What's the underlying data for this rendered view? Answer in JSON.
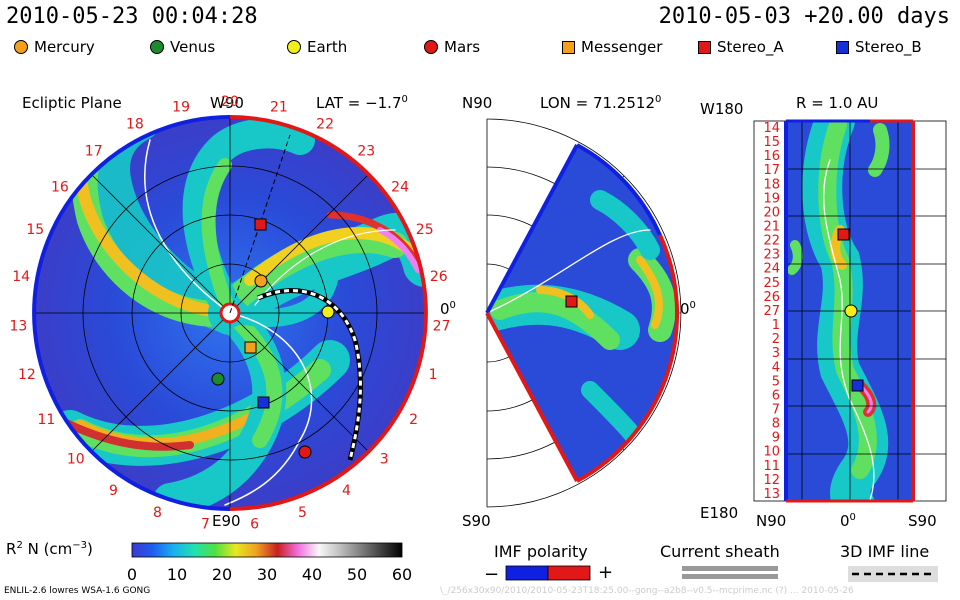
{
  "header": {
    "left_datetime": "2010-05-23 00:04:28",
    "right_datetime": "2010-05-03 +20.00 days"
  },
  "legend": [
    {
      "label": "Mercury",
      "shape": "circle",
      "color": "#f5a01a"
    },
    {
      "label": "Venus",
      "shape": "circle",
      "color": "#1d8a2e"
    },
    {
      "label": "Earth",
      "shape": "circle",
      "color": "#f2ee1a"
    },
    {
      "label": "Mars",
      "shape": "circle",
      "color": "#e01818"
    },
    {
      "label": "Messenger",
      "shape": "square",
      "color": "#f5a01a"
    },
    {
      "label": "Stereo_A",
      "shape": "square",
      "color": "#e01818"
    },
    {
      "label": "Stereo_B",
      "shape": "square",
      "color": "#1530d8"
    }
  ],
  "panels": {
    "ecliptic": {
      "title": "Ecliptic Plane",
      "top_label": "W90",
      "lat_label": "LAT = −1.7",
      "lat_sup": "0",
      "bottom_label": "E90",
      "right_label": "0",
      "right_sup": "0"
    },
    "meridional": {
      "top_label": "N90",
      "lon_label": "LON = 71.2512",
      "lon_sup": "0",
      "bottom_label": "S90",
      "right_label": "0",
      "right_sup": "0"
    },
    "radial": {
      "top_left": "W180",
      "r_label": "R = 1.0 AU",
      "bottom_left": "E180",
      "x_left": "N90",
      "x_mid": "0",
      "x_mid_sup": "0",
      "x_right": "S90"
    }
  },
  "ecliptic_day_labels": [
    "20",
    "21",
    "22",
    "23",
    "24",
    "25",
    "26",
    "27",
    "1",
    "2",
    "3",
    "4",
    "5",
    "6",
    "7",
    "8",
    "9",
    "10",
    "11",
    "12",
    "13",
    "14",
    "15",
    "16",
    "17",
    "18",
    "19"
  ],
  "radial_day_labels": [
    "14",
    "15",
    "16",
    "17",
    "18",
    "19",
    "20",
    "21",
    "22",
    "23",
    "24",
    "25",
    "26",
    "27",
    "1",
    "2",
    "3",
    "4",
    "5",
    "6",
    "7",
    "8",
    "9",
    "10",
    "11",
    "12",
    "13"
  ],
  "colorbar": {
    "label": "R",
    "label_sup": "2",
    "label_rest": " N (cm",
    "label_unit_sup": "−3",
    "label_end": ")",
    "ticks": [
      "0",
      "10",
      "20",
      "30",
      "40",
      "50",
      "60"
    ],
    "range": [
      0,
      60
    ],
    "colors": [
      "#3a3ad0",
      "#1e5ef0",
      "#19b0f0",
      "#22e0b0",
      "#50e040",
      "#e8e820",
      "#f0a020",
      "#c82020",
      "#f070e0",
      "#f8f8f8",
      "#c0c0c0",
      "#808080",
      "#404040",
      "#000000"
    ]
  },
  "imf_polarity": {
    "title": "IMF polarity",
    "minus": "−",
    "plus": "+",
    "colors": [
      "#1020e0",
      "#e01818"
    ]
  },
  "current_sheath": {
    "title": "Current sheath"
  },
  "imf_line": {
    "title": "3D IMF line"
  },
  "footer": {
    "left": "ENLIL-2.6 lowres WSA-1.6 GONG",
    "right": "\\_/256x30x90/2010/2010-05-23T18:25.00--gong--a2b8--v0.5--mcprime.nc (?) ... 2010-05-26"
  },
  "chart_data": [
    {
      "type": "heatmap",
      "title": "Ecliptic Plane",
      "quantity": "R^2 N (cm^-3)",
      "value_range": [
        0,
        60
      ],
      "bodies": [
        {
          "name": "Mercury",
          "shape": "circle"
        },
        {
          "name": "Venus",
          "shape": "circle"
        },
        {
          "name": "Earth",
          "shape": "circle"
        },
        {
          "name": "Mars",
          "shape": "circle"
        },
        {
          "name": "Messenger",
          "shape": "square"
        },
        {
          "name": "Stereo_A",
          "shape": "square"
        },
        {
          "name": "Stereo_B",
          "shape": "square"
        }
      ]
    }
  ]
}
